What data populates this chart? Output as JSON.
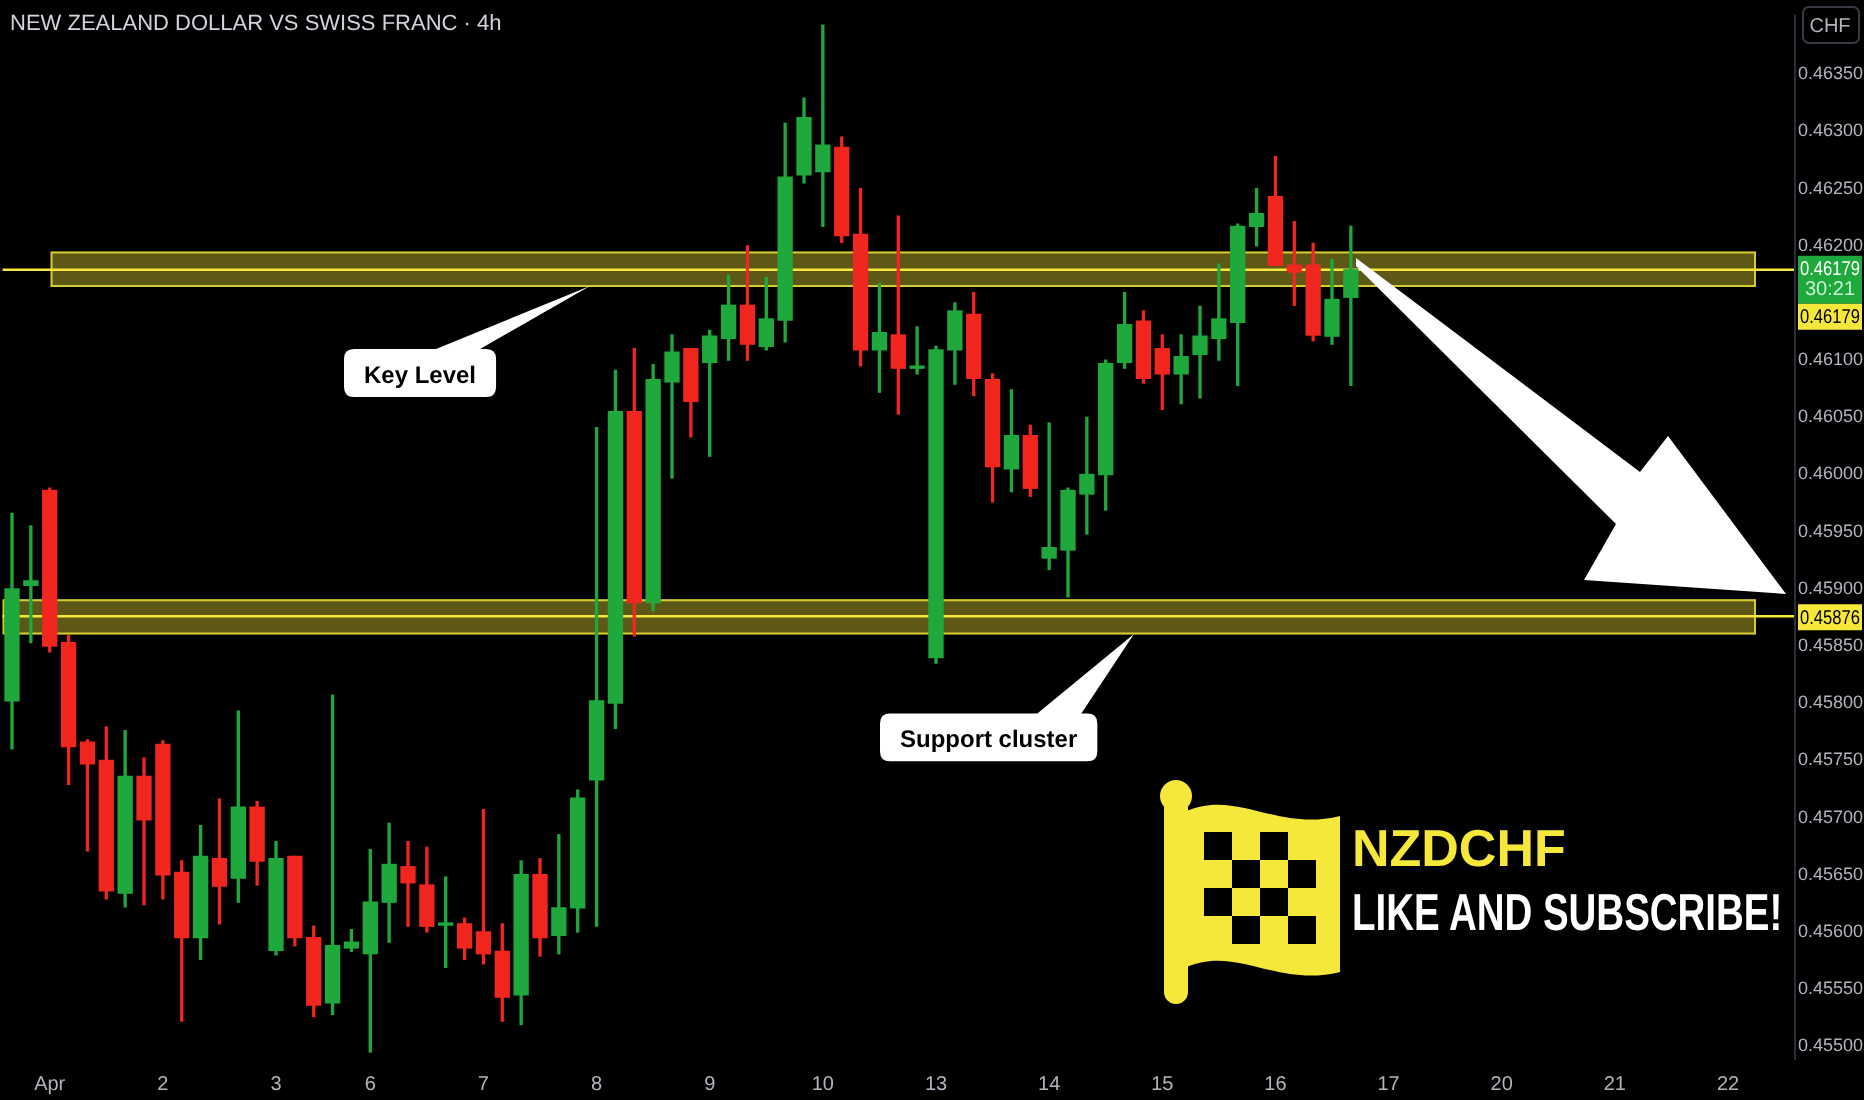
{
  "chart_data": {
    "type": "candlestick",
    "title": "NEW ZEALAND DOLLAR VS SWISS FRANC · 4h",
    "ylabel": "CHF",
    "categories": [
      null,
      null,
      "Apr",
      null,
      null,
      null,
      null,
      null,
      "2",
      null,
      null,
      null,
      null,
      null,
      "3",
      null,
      null,
      null,
      null,
      "6",
      null,
      null,
      null,
      null,
      null,
      "7",
      null,
      null,
      null,
      null,
      null,
      "8",
      null,
      null,
      null,
      null,
      null,
      "9",
      null,
      null,
      null,
      null,
      null,
      "10",
      null,
      null,
      null,
      null,
      null,
      "13",
      null,
      null,
      null,
      null,
      null,
      "14",
      null,
      null,
      null,
      null,
      null,
      "15",
      null,
      null,
      null,
      null,
      null,
      "16",
      null,
      null,
      null,
      null,
      null,
      "17",
      null,
      null,
      null,
      null,
      null,
      "20",
      null,
      null,
      null,
      null,
      null,
      "21",
      null,
      null,
      null,
      null,
      null,
      "22",
      null,
      null,
      null
    ],
    "ohlc": [
      [
        0.45802,
        0.45966,
        0.4576,
        0.459
      ],
      [
        0.45903,
        0.45955,
        0.45853,
        0.45907
      ],
      [
        0.45986,
        0.45988,
        0.45845,
        0.4585
      ],
      [
        0.45853,
        0.45859,
        0.45729,
        0.45762
      ],
      [
        0.45766,
        0.45768,
        0.45671,
        0.45747
      ],
      [
        0.4575,
        0.45779,
        0.45629,
        0.45636
      ],
      [
        0.45634,
        0.45776,
        0.45622,
        0.45736
      ],
      [
        0.45736,
        0.45752,
        0.45624,
        0.45698
      ],
      [
        0.45764,
        0.45767,
        0.45629,
        0.4565
      ],
      [
        0.45652,
        0.45662,
        0.45522,
        0.45595
      ],
      [
        0.45595,
        0.45693,
        0.45576,
        0.45666
      ],
      [
        0.45664,
        0.45716,
        0.45607,
        0.4564
      ],
      [
        0.45647,
        0.45793,
        0.45626,
        0.45709
      ],
      [
        0.45709,
        0.45714,
        0.45641,
        0.45662
      ],
      [
        0.45584,
        0.45679,
        0.4558,
        0.45664
      ],
      [
        0.45666,
        0.45666,
        0.45588,
        0.45595
      ],
      [
        0.45595,
        0.45605,
        0.45526,
        0.45536
      ],
      [
        0.45538,
        0.45807,
        0.45528,
        0.45588
      ],
      [
        0.45586,
        0.45602,
        0.45583,
        0.45591
      ],
      [
        0.45581,
        0.45672,
        0.45495,
        0.45626
      ],
      [
        0.45626,
        0.45695,
        0.45591,
        0.45659
      ],
      [
        0.45657,
        0.45679,
        0.45605,
        0.45643
      ],
      [
        0.45641,
        0.45674,
        0.456,
        0.45605
      ],
      [
        0.45606,
        0.45648,
        0.45569,
        0.45607
      ],
      [
        0.45607,
        0.45612,
        0.45576,
        0.45586
      ],
      [
        0.456,
        0.45707,
        0.45572,
        0.45581
      ],
      [
        0.45583,
        0.45607,
        0.45522,
        0.45543
      ],
      [
        0.45545,
        0.45662,
        0.45519,
        0.4565
      ],
      [
        0.4565,
        0.45664,
        0.45579,
        0.45595
      ],
      [
        0.45597,
        0.45685,
        0.45581,
        0.45621
      ],
      [
        0.45621,
        0.45724,
        0.456,
        0.45717
      ],
      [
        0.45733,
        0.46041,
        0.45605,
        0.45802
      ],
      [
        0.458,
        0.46091,
        0.45778,
        0.46055
      ],
      [
        0.46055,
        0.4611,
        0.45859,
        0.45888
      ],
      [
        0.45888,
        0.46096,
        0.45881,
        0.46083
      ],
      [
        0.46081,
        0.46122,
        0.45997,
        0.46107
      ],
      [
        0.4611,
        0.4611,
        0.46033,
        0.46064
      ],
      [
        0.46098,
        0.46126,
        0.46016,
        0.46121
      ],
      [
        0.46119,
        0.46174,
        0.461,
        0.46148
      ],
      [
        0.46148,
        0.462,
        0.461,
        0.46114
      ],
      [
        0.46112,
        0.46172,
        0.46109,
        0.46136
      ],
      [
        0.46135,
        0.46307,
        0.46116,
        0.4626
      ],
      [
        0.46262,
        0.46329,
        0.46255,
        0.46312
      ],
      [
        0.46265,
        0.46393,
        0.46217,
        0.46288
      ],
      [
        0.46286,
        0.46295,
        0.46203,
        0.46209
      ],
      [
        0.4621,
        0.4625,
        0.46095,
        0.46109
      ],
      [
        0.46109,
        0.46167,
        0.46072,
        0.46124
      ],
      [
        0.46122,
        0.46226,
        0.46053,
        0.46093
      ],
      [
        0.46093,
        0.46129,
        0.46088,
        0.46093
      ],
      [
        0.4584,
        0.46112,
        0.45835,
        0.46109
      ],
      [
        0.46109,
        0.4615,
        0.46079,
        0.46143
      ],
      [
        0.4614,
        0.46159,
        0.46069,
        0.46084
      ],
      [
        0.46083,
        0.46088,
        0.45976,
        0.46007
      ],
      [
        0.46005,
        0.46074,
        0.45985,
        0.46034
      ],
      [
        0.46034,
        0.46043,
        0.45981,
        0.45988
      ],
      [
        0.45927,
        0.46045,
        0.45917,
        0.45936
      ],
      [
        0.45934,
        0.45988,
        0.45893,
        0.45986
      ],
      [
        0.45983,
        0.4605,
        0.45948,
        0.46
      ],
      [
        0.46,
        0.461,
        0.45969,
        0.46097
      ],
      [
        0.46098,
        0.46159,
        0.46093,
        0.46131
      ],
      [
        0.46134,
        0.46143,
        0.4608,
        0.46084
      ],
      [
        0.4611,
        0.46122,
        0.46057,
        0.46088
      ],
      [
        0.46088,
        0.46122,
        0.46062,
        0.46103
      ],
      [
        0.46105,
        0.46147,
        0.46067,
        0.46121
      ],
      [
        0.46119,
        0.46184,
        0.461,
        0.46136
      ],
      [
        0.46133,
        0.46219,
        0.46078,
        0.46217
      ],
      [
        0.46217,
        0.4625,
        0.462,
        0.46228
      ],
      [
        0.46243,
        0.46278,
        0.46183,
        0.46183
      ],
      [
        0.46183,
        0.46221,
        0.46148,
        0.46177
      ],
      [
        0.46183,
        0.46202,
        0.46117,
        0.46122
      ],
      [
        0.46121,
        0.46188,
        0.46114,
        0.46153
      ],
      [
        0.46155,
        0.46217,
        0.46078,
        0.46179
      ],
      null,
      null,
      null,
      null,
      null,
      null,
      null,
      null,
      null,
      null,
      null,
      null,
      null,
      null,
      null,
      null,
      null,
      null,
      null,
      null,
      null,
      null,
      null
    ],
    "colors": [
      "#1fa83c",
      "#1fa83c",
      "#f0261f",
      "#f0261f",
      "#f0261f",
      "#f0261f",
      "#1fa83c",
      "#f0261f",
      "#f0261f",
      "#f0261f",
      "#1fa83c",
      "#f0261f",
      "#1fa83c",
      "#f0261f",
      "#1fa83c",
      "#f0261f",
      "#f0261f",
      "#1fa83c",
      "#1fa83c",
      "#1fa83c",
      "#1fa83c",
      "#f0261f",
      "#f0261f",
      "#1fa83c",
      "#f0261f",
      "#f0261f",
      "#f0261f",
      "#1fa83c",
      "#f0261f",
      "#1fa83c",
      "#1fa83c",
      "#1fa83c",
      "#1fa83c",
      "#f0261f",
      "#1fa83c",
      "#1fa83c",
      "#f0261f",
      "#1fa83c",
      "#1fa83c",
      "#f0261f",
      "#1fa83c",
      "#1fa83c",
      "#1fa83c",
      "#1fa83c",
      "#f0261f",
      "#f0261f",
      "#1fa83c",
      "#f0261f",
      "#1fa83c",
      "#1fa83c",
      "#1fa83c",
      "#f0261f",
      "#f0261f",
      "#1fa83c",
      "#f0261f",
      "#1fa83c",
      "#1fa83c",
      "#1fa83c",
      "#1fa83c",
      "#1fa83c",
      "#f0261f",
      "#f0261f",
      "#1fa83c",
      "#1fa83c",
      "#1fa83c",
      "#1fa83c",
      "#1fa83c",
      "#f0261f",
      "#f0261f",
      "#f0261f",
      "#1fa83c",
      "#1fa83c",
      null,
      null,
      null,
      null,
      null,
      null,
      null,
      null,
      null,
      null,
      null,
      null,
      null,
      null,
      null,
      null,
      null,
      null,
      null,
      null,
      null,
      null,
      null
    ],
    "ylim": [
      0.45488,
      0.46402
    ],
    "yticks": [
      {
        "value": 0.455,
        "label": "0.45500"
      },
      {
        "value": 0.4555,
        "label": "0.45550"
      },
      {
        "value": 0.456,
        "label": "0.45600"
      },
      {
        "value": 0.4565,
        "label": "0.45650"
      },
      {
        "value": 0.457,
        "label": "0.45700"
      },
      {
        "value": 0.4575,
        "label": "0.45750"
      },
      {
        "value": 0.458,
        "label": "0.45800"
      },
      {
        "value": 0.4585,
        "label": "0.45850"
      },
      {
        "value": 0.459,
        "label": "0.45900"
      },
      {
        "value": 0.4595,
        "label": "0.45950"
      },
      {
        "value": 0.46,
        "label": "0.46000"
      },
      {
        "value": 0.4605,
        "label": "0.46050"
      },
      {
        "value": 0.461,
        "label": "0.46100"
      },
      {
        "value": 0.462,
        "label": "0.46200"
      },
      {
        "value": 0.4625,
        "label": "0.46250"
      },
      {
        "value": 0.463,
        "label": "0.46300"
      },
      {
        "value": 0.4635,
        "label": "0.46350"
      }
    ],
    "bands": [
      {
        "axis": "y",
        "from": 0.46164,
        "to": 0.46195,
        "color": "#f5e83b"
      },
      {
        "axis": "y",
        "from": 0.4586,
        "to": 0.45891,
        "color": "#f5e83b"
      }
    ],
    "ref_lines": [
      {
        "axis": "y",
        "value": 0.46179,
        "label": "0.46179",
        "color": "#f5e83b"
      },
      {
        "axis": "y",
        "value": 0.45876,
        "label": "0.45876",
        "color": "#f5e83b"
      }
    ],
    "annotations": [
      "0.46179",
      "30:21",
      "NZDCHF",
      "LIKE AND SUBSCRIBE!",
      "Key Level",
      "Support cluster"
    ]
  }
}
